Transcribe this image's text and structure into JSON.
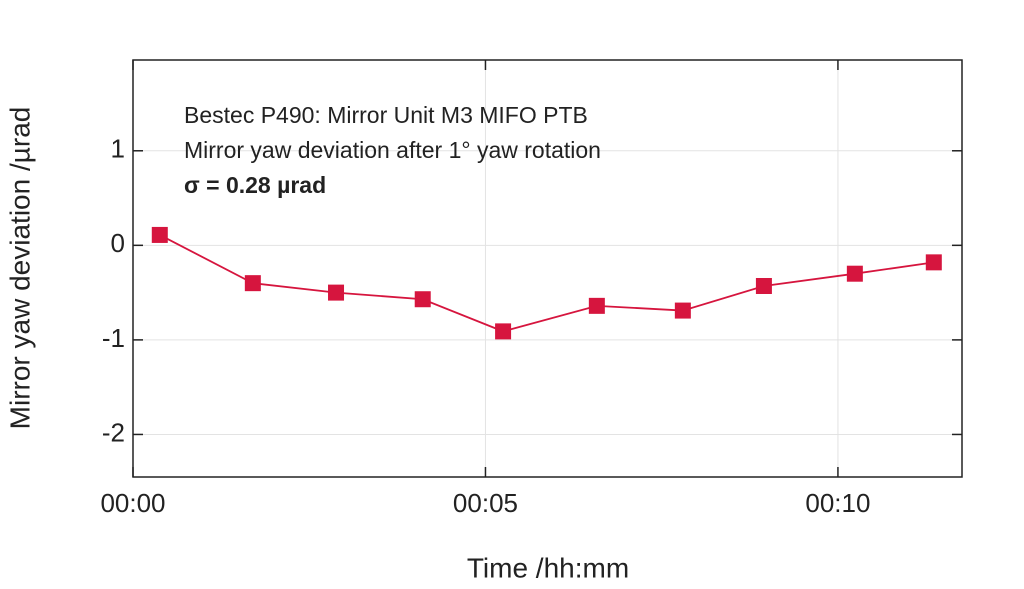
{
  "chart_data": {
    "type": "line",
    "annotations": [
      "Bestec P490: Mirror Unit M3 MIFO PTB",
      "Mirror yaw deviation after 1° yaw rotation",
      "σ = 0.28 µrad"
    ],
    "x_label": "Time /hh:mm",
    "y_label": "Mirror yaw deviation /µrad",
    "x": [
      0.38,
      1.7,
      2.88,
      4.11,
      5.25,
      6.58,
      7.8,
      8.95,
      10.24,
      11.36
    ],
    "values": [
      0.11,
      -0.4,
      -0.5,
      -0.57,
      -0.91,
      -0.64,
      -0.69,
      -0.43,
      -0.3,
      -0.18
    ],
    "color": "#d6153e",
    "xlim": [
      0,
      11.76
    ],
    "xticks": [
      {
        "value": 0,
        "label": "00:00"
      },
      {
        "value": 5,
        "label": "00:05"
      },
      {
        "value": 10,
        "label": "00:10"
      }
    ],
    "ylim": [
      -2.45,
      1.96
    ],
    "yticks": [
      -2,
      -1,
      0,
      1
    ],
    "grid": true
  }
}
